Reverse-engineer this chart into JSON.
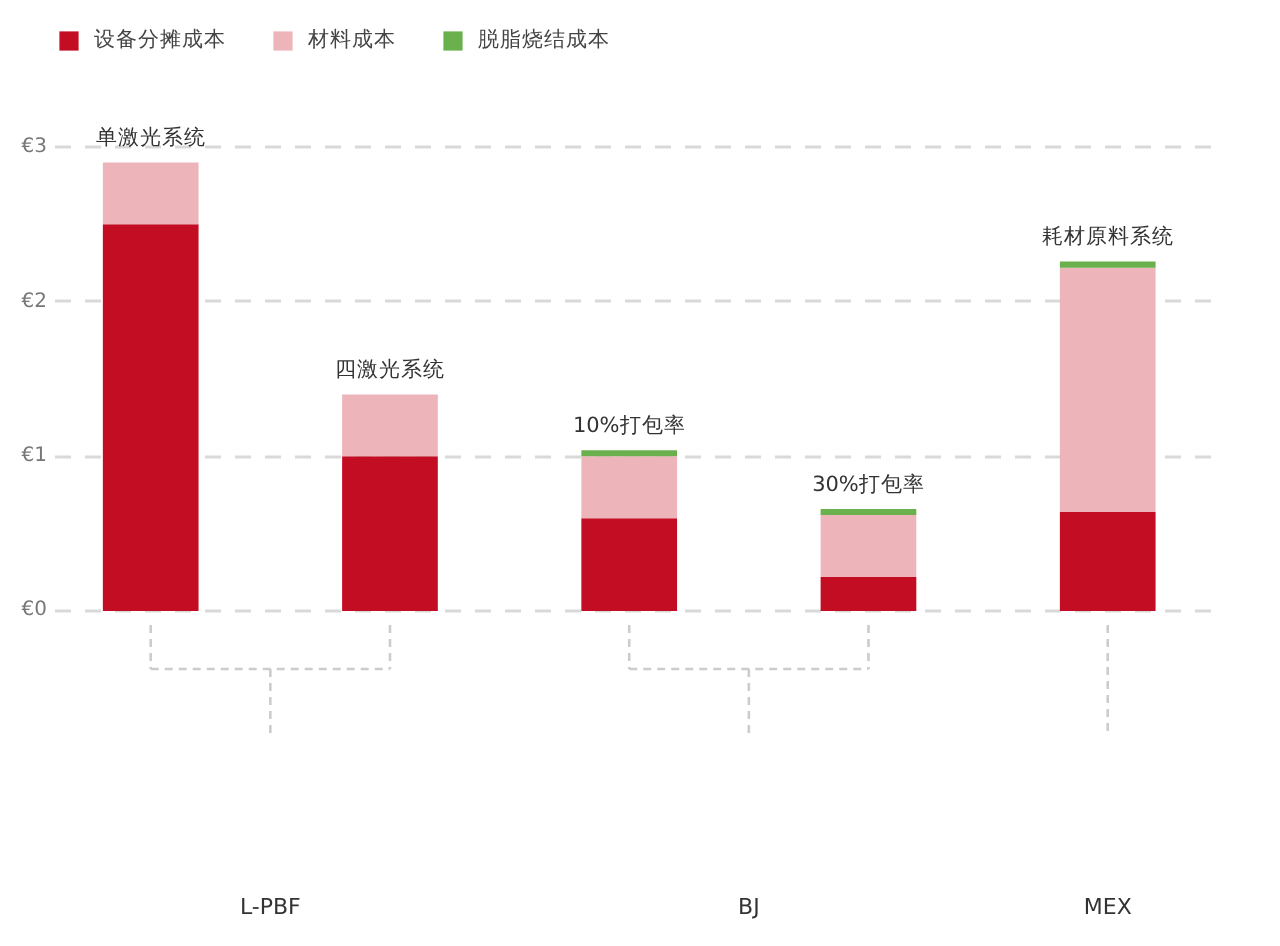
{
  "chart_data": {
    "type": "bar",
    "stacked": true,
    "categories": [
      "单激光系统",
      "四激光系统",
      "10%打包率",
      "30%打包率",
      "耗材原料系统"
    ],
    "series": [
      {
        "name": "设备分摊成本",
        "color": "#c30d23",
        "values": [
          2.5,
          1.0,
          0.6,
          0.22,
          0.64
        ]
      },
      {
        "name": "材料成本",
        "color": "#edb4ba",
        "values": [
          0.4,
          0.4,
          0.4,
          0.4,
          1.58
        ]
      },
      {
        "name": "脱脂烧结成本",
        "color": "#6ab04c",
        "values": [
          null,
          null,
          0.04,
          0.04,
          0.04
        ]
      }
    ],
    "ylim": [
      0,
      3
    ],
    "yticks": [
      {
        "value": 0,
        "label": "€0"
      },
      {
        "value": 1,
        "label": "€1"
      },
      {
        "value": 2,
        "label": "€2"
      },
      {
        "value": 3,
        "label": "€3"
      }
    ],
    "grid": "y",
    "legend": "top left",
    "annotations": [
      "L-PBF",
      "BJ",
      "MEX"
    ]
  }
}
